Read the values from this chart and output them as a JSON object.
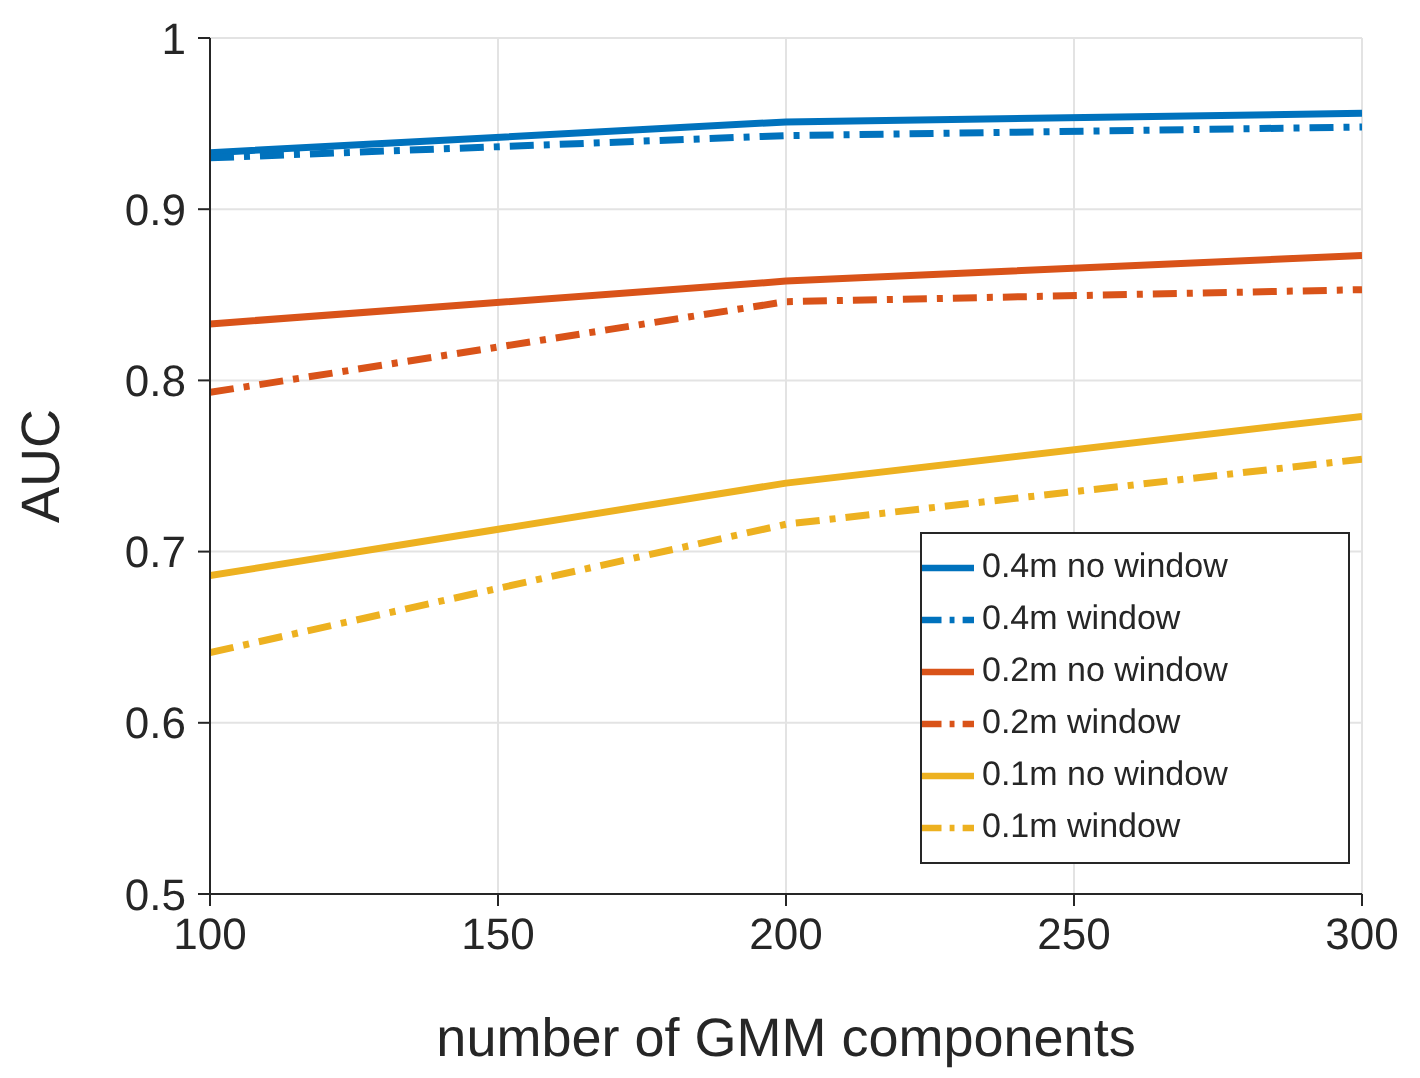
{
  "chart_data": {
    "type": "line",
    "xlabel": "number of GMM components",
    "ylabel": "AUC",
    "x": [
      100,
      200,
      300
    ],
    "series": [
      {
        "name": "0.4m no window",
        "color": "#0072bd",
        "values": [
          0.933,
          0.951,
          0.956
        ],
        "line_style": "solid"
      },
      {
        "name": "0.4m window",
        "color": "#0072bd",
        "values": [
          0.93,
          0.943,
          0.948
        ],
        "line_style": "dashed"
      },
      {
        "name": "0.2m no window",
        "color": "#d95319",
        "values": [
          0.833,
          0.858,
          0.873
        ],
        "line_style": "solid"
      },
      {
        "name": "0.2m window",
        "color": "#d95319",
        "values": [
          0.793,
          0.846,
          0.853
        ],
        "line_style": "dashed"
      },
      {
        "name": "0.1m no window",
        "color": "#edb120",
        "values": [
          0.686,
          0.74,
          0.779
        ],
        "line_style": "solid"
      },
      {
        "name": "0.1m window",
        "color": "#edb120",
        "values": [
          0.641,
          0.716,
          0.754
        ],
        "line_style": "dashed"
      }
    ],
    "xlim": [
      100,
      300
    ],
    "xticks": [
      100,
      150,
      200,
      250,
      300
    ],
    "ylim": [
      0.5,
      1
    ],
    "yticks": [
      0.5,
      0.6,
      0.7,
      0.8,
      0.9,
      1
    ],
    "grid": true,
    "legend": "bottom right",
    "marker": "none"
  }
}
